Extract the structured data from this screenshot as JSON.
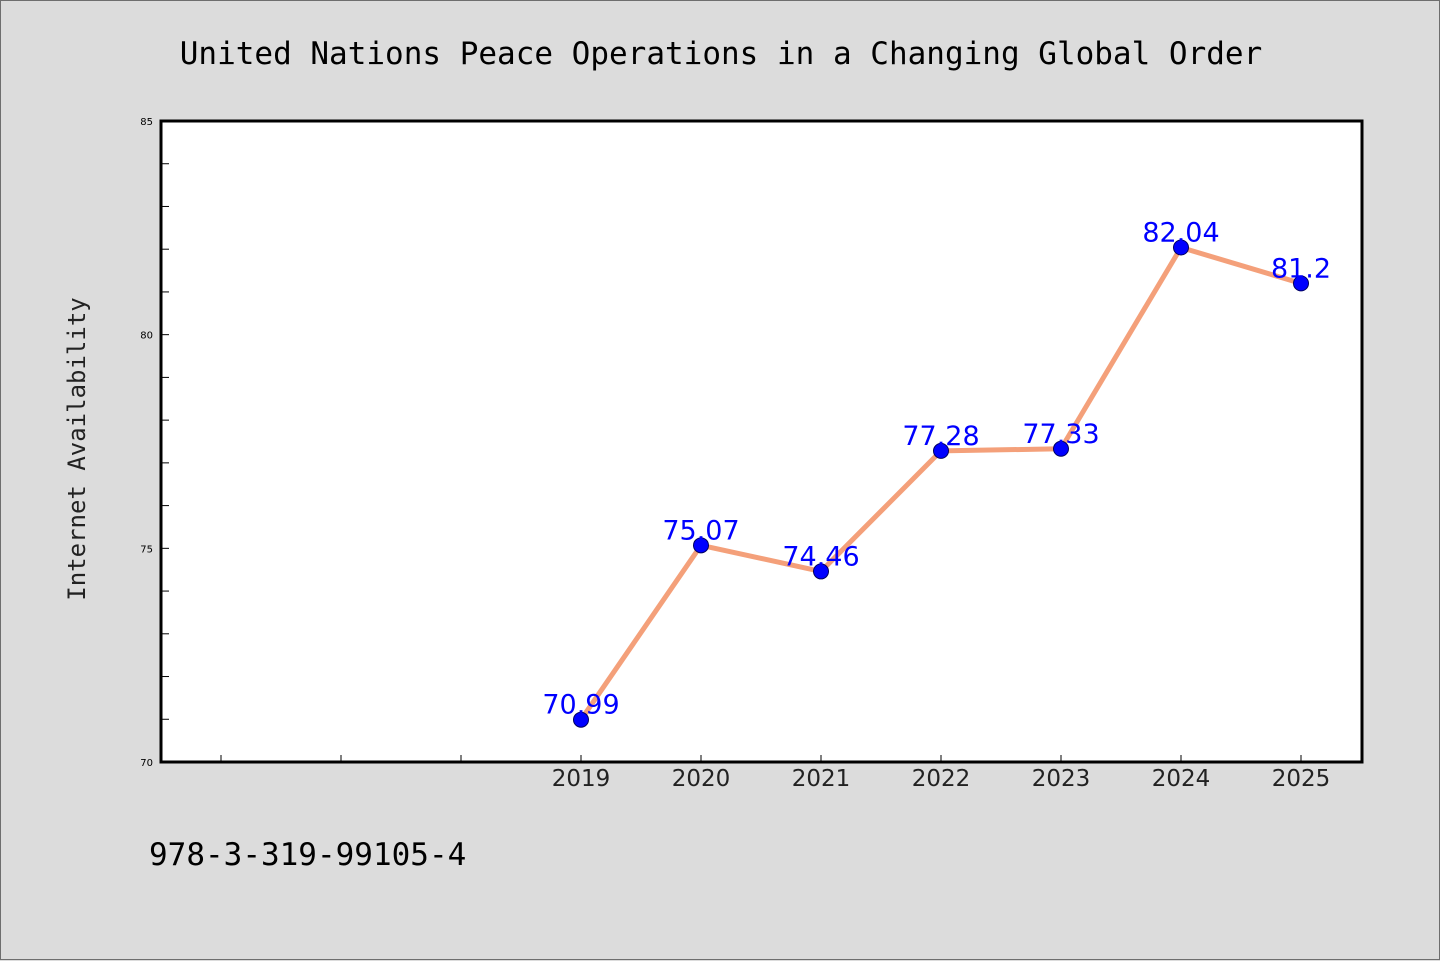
{
  "chart_data": {
    "type": "line",
    "title": "United Nations Peace Operations in a Changing Global Order",
    "xlabel": "",
    "ylabel": "Internet Availability",
    "categories": [
      "2019",
      "2020",
      "2021",
      "2022",
      "2023",
      "2024",
      "2025"
    ],
    "values": [
      70.99,
      75.07,
      74.46,
      77.28,
      77.33,
      82.04,
      81.2
    ],
    "ylim": [
      70,
      85
    ],
    "yticks": [
      "70",
      "75",
      "80",
      "85"
    ],
    "line_color": "#f4a07a",
    "marker_color": "#0000ff",
    "label_color": "#0000ff",
    "grid": false,
    "legend": "none"
  },
  "footer": {
    "isbn": "978-3-319-99105-4"
  }
}
